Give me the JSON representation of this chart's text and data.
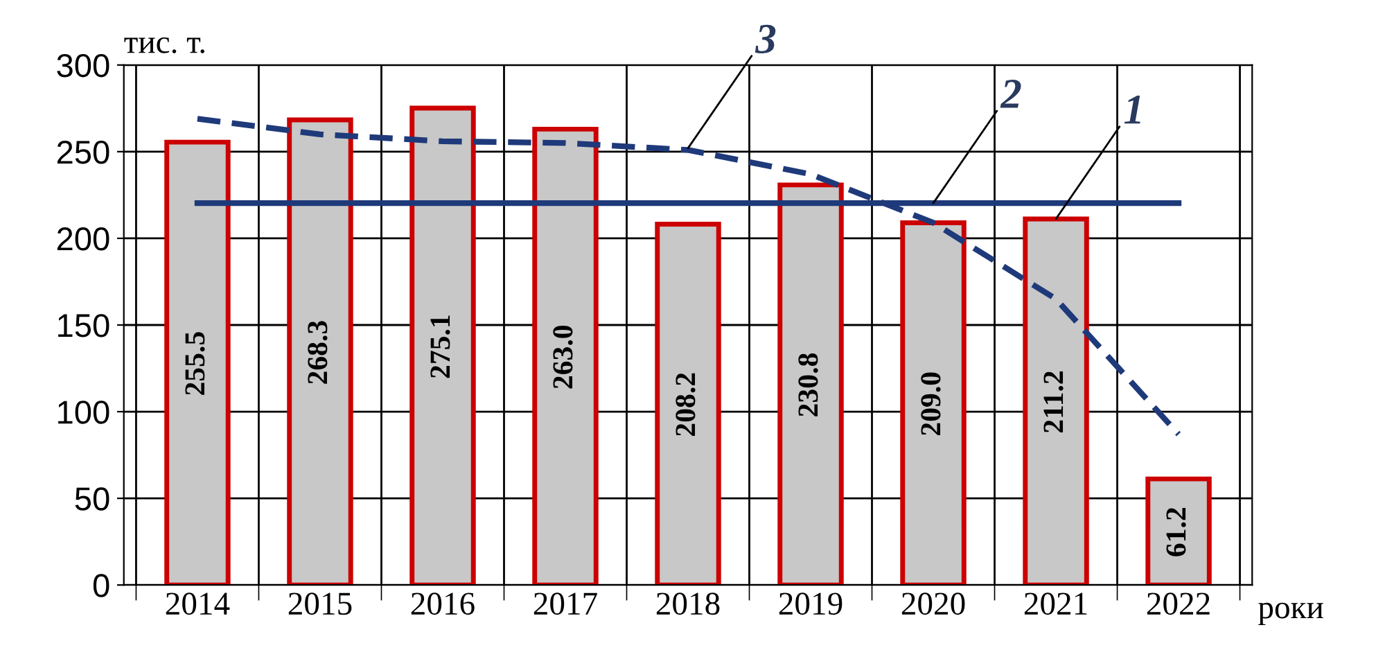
{
  "chart_data": {
    "type": "bar",
    "ylabel": "тис. т.",
    "xlabel": "роки",
    "categories": [
      "2014",
      "2015",
      "2016",
      "2017",
      "2018",
      "2019",
      "2020",
      "2021",
      "2022"
    ],
    "series": [
      {
        "color": "#c8c8c8",
        "values": [
          255.5,
          268.3,
          275.1,
          263.0,
          208.2,
          230.8,
          209.0,
          211.2,
          61.2
        ],
        "value_labels": [
          "255.5",
          "268.3",
          "275.1",
          "263.0",
          "208.2",
          "230.8",
          "209.0",
          "211.2",
          "61.2"
        ]
      },
      {
        "type": "line",
        "color": "#1f3a7a",
        "line_style": "dashed",
        "values": [
          269,
          260,
          256,
          255,
          251,
          237,
          209,
          165,
          87
        ]
      }
    ],
    "ref_lines": [
      {
        "axis": "y",
        "value": 220.3,
        "color": "#1f3a7a"
      }
    ],
    "annotations": [
      {
        "text": "1",
        "x": "2021",
        "y": 211.2
      },
      {
        "text": "2",
        "x": "2020",
        "y": 220.3
      },
      {
        "text": "3",
        "x": "2018",
        "y": 252
      }
    ],
    "ylim": [
      0,
      300
    ],
    "yticks": [
      0,
      50,
      100,
      150,
      200,
      250,
      300
    ],
    "grid": true
  }
}
